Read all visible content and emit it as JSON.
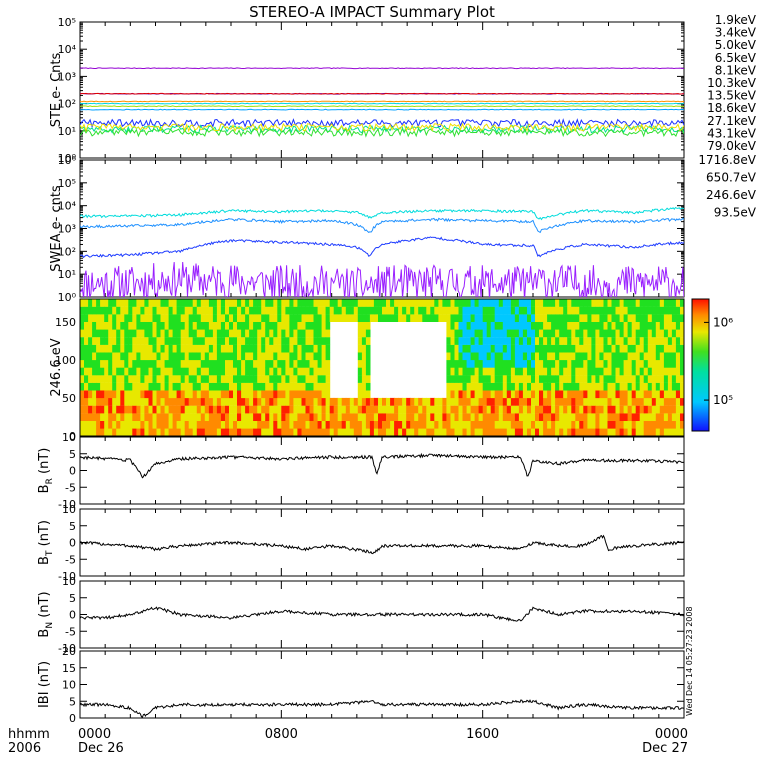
{
  "title": "STEREO-A IMPACT Summary Plot",
  "time_axis": {
    "corner_label_top": "hhmm",
    "corner_label_bottom": "2006",
    "ticks": [
      {
        "time": "0000",
        "date": "Dec 26",
        "hour": 0
      },
      {
        "time": "0800",
        "date": "",
        "hour": 8
      },
      {
        "time": "1600",
        "date": "",
        "hour": 16
      },
      {
        "time": "0000",
        "date": "Dec 27",
        "hour": 24
      }
    ]
  },
  "side_stamp": "Wed Dec 14 05:27:23 2008",
  "colors": {
    "ste": [
      "#9400d3",
      "#5a00c8",
      "#1a30ff",
      "#00a0ff",
      "#00d8e0",
      "#00e090",
      "#30e030",
      "#a0e000",
      "#f0e000",
      "#ff9000",
      "#e00000"
    ],
    "swea": [
      "#9a20ff",
      "#1e3cff",
      "#1e90ff",
      "#00dcdc"
    ]
  },
  "chart_data": [
    {
      "type": "line",
      "ylabel": "STE e- Cnts",
      "scale": "log",
      "ylim": [
        1,
        100000
      ],
      "yticks": [
        1,
        10,
        100,
        1000,
        10000,
        100000
      ],
      "ytick_labels": [
        "10⁰",
        "10¹",
        "10²",
        "10³",
        "10⁴",
        "10⁵"
      ],
      "series": [
        {
          "name": "1.9keV",
          "values": [
            2000,
            2000,
            2000
          ]
        },
        {
          "name": "3.4keV",
          "values": [
            230,
            230,
            230
          ]
        },
        {
          "name": "5.0keV",
          "values": [
            20,
            20,
            20
          ]
        },
        {
          "name": "6.5keV",
          "values": [
            60,
            60,
            60
          ]
        },
        {
          "name": "8.1keV",
          "values": [
            100,
            100,
            100
          ]
        },
        {
          "name": "10.3keV",
          "values": [
            12,
            12,
            12
          ]
        },
        {
          "name": "13.5keV",
          "values": [
            9,
            9,
            9
          ]
        },
        {
          "name": "18.6keV",
          "values": [
            80,
            80,
            80
          ]
        },
        {
          "name": "27.1keV",
          "values": [
            14,
            14,
            14
          ]
        },
        {
          "name": "43.1keV",
          "values": [
            120,
            120,
            120
          ]
        },
        {
          "name": "79.0keV",
          "values": [
            230,
            230,
            230
          ]
        }
      ]
    },
    {
      "type": "line",
      "ylabel": "SWEA e- cnts",
      "scale": "log",
      "ylim": [
        1,
        1000000
      ],
      "yticks": [
        1,
        10,
        100,
        1000,
        10000,
        100000,
        1000000
      ],
      "ytick_labels": [
        "10⁰",
        "10¹",
        "10²",
        "10³",
        "10⁴",
        "10⁵",
        "10⁶"
      ],
      "x_hours": [
        0,
        2,
        4,
        5,
        6,
        8,
        10,
        11,
        11.5,
        12,
        14,
        16,
        18,
        18.2,
        20,
        22,
        24
      ],
      "series": [
        {
          "name": "1716.8eV",
          "values": [
            4,
            4,
            6,
            5,
            5,
            4,
            4,
            3,
            3,
            4,
            4,
            4,
            4,
            5,
            4,
            4,
            4
          ]
        },
        {
          "name": "650.7eV",
          "values": [
            60,
            70,
            100,
            200,
            300,
            250,
            200,
            150,
            60,
            200,
            400,
            200,
            180,
            60,
            200,
            150,
            250
          ]
        },
        {
          "name": "246.6eV",
          "values": [
            1200,
            1300,
            1500,
            2000,
            2500,
            2000,
            2200,
            1500,
            600,
            2000,
            2500,
            2200,
            2000,
            700,
            2200,
            2000,
            2600
          ]
        },
        {
          "name": "93.5eV",
          "values": [
            3500,
            3500,
            4000,
            5000,
            6000,
            5500,
            6000,
            5000,
            3000,
            5000,
            6000,
            6000,
            5500,
            2500,
            6000,
            5000,
            8000
          ]
        }
      ]
    },
    {
      "type": "heatmap",
      "ylabel": "246.6 eV",
      "ylim": [
        0,
        180
      ],
      "yticks": [
        0,
        50,
        100,
        150
      ],
      "colorbar": {
        "scale": "log",
        "range": [
          40000,
          2000000
        ],
        "ticks": [
          "10⁵",
          "10⁶"
        ]
      }
    },
    {
      "type": "line",
      "ylabel": "B_R (nT)",
      "ylabel_main": "B",
      "ylabel_sub": "R",
      "ylabel_unit": "(nT)",
      "ylim": [
        -10,
        10
      ],
      "yticks": [
        -10,
        -5,
        0,
        5,
        10
      ],
      "x": [
        0,
        1,
        2,
        2.5,
        3,
        4,
        6,
        8,
        10,
        11.6,
        11.8,
        12,
        14,
        16,
        17.5,
        17.8,
        18,
        19,
        20,
        22,
        24
      ],
      "values": [
        4,
        3.5,
        3,
        -2,
        2,
        3.5,
        4,
        3.5,
        4,
        4,
        -1,
        4,
        4.5,
        4,
        4,
        -2,
        3,
        2,
        3,
        3,
        2.5
      ]
    },
    {
      "type": "line",
      "ylabel": "B_T (nT)",
      "ylabel_main": "B",
      "ylabel_sub": "T",
      "ylabel_unit": "(nT)",
      "ylim": [
        -10,
        10
      ],
      "yticks": [
        -10,
        -5,
        0,
        5,
        10
      ],
      "x": [
        0,
        2,
        3,
        4,
        6,
        8,
        9,
        10,
        11.7,
        12,
        14,
        16,
        17.5,
        18,
        19,
        20,
        20.8,
        21,
        22,
        24
      ],
      "values": [
        0,
        -1,
        -2,
        -1,
        0,
        -1,
        -2,
        -1,
        -3,
        -1,
        -1,
        -1,
        -2,
        0,
        -1,
        -1,
        2,
        -2,
        -1,
        0
      ]
    },
    {
      "type": "line",
      "ylabel": "B_N (nT)",
      "ylabel_main": "B",
      "ylabel_sub": "N",
      "ylabel_unit": "(nT)",
      "ylim": [
        -10,
        10
      ],
      "yticks": [
        -10,
        -5,
        0,
        5,
        10
      ],
      "x": [
        0,
        1,
        2,
        3,
        4,
        6,
        7,
        8,
        10,
        12,
        14,
        16,
        17.5,
        18,
        19,
        20,
        22,
        24
      ],
      "values": [
        -1,
        -1,
        0,
        2,
        0,
        -1,
        0,
        1,
        0,
        0,
        0,
        0,
        -2,
        2,
        0,
        1,
        1,
        0
      ]
    },
    {
      "type": "line",
      "ylabel": "|B| (nT)",
      "ylabel_main": "IBI",
      "ylabel_sub": "",
      "ylabel_unit": "(nT)",
      "ylim": [
        0,
        20
      ],
      "yticks": [
        0,
        5,
        10,
        15,
        20
      ],
      "x": [
        0,
        1,
        2,
        2.5,
        3,
        4,
        6,
        8,
        10,
        11.6,
        12,
        14,
        16,
        17.5,
        18,
        19,
        20,
        22,
        24
      ],
      "values": [
        4,
        4,
        3,
        0.5,
        3,
        4,
        4,
        4,
        4,
        5,
        4,
        4,
        4,
        5,
        5,
        3,
        4,
        3,
        3
      ]
    }
  ]
}
